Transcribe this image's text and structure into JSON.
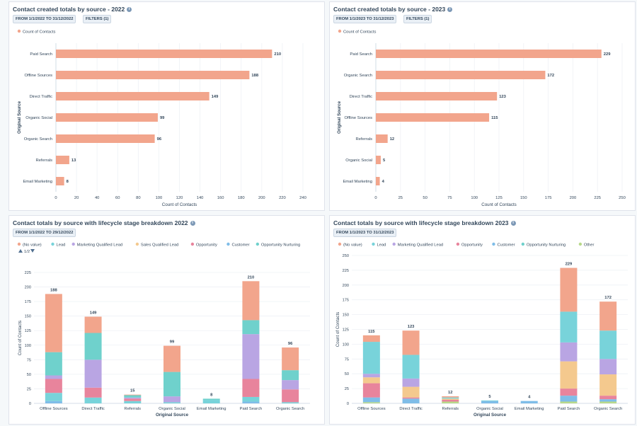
{
  "panels": {
    "p1": {
      "title": "Contact created totals by source - 2022",
      "date_filter": "FROM 1/1/2022 TO 31/12/2022",
      "filters": "FILTERS (1)"
    },
    "p2": {
      "title": "Contact created totals by source - 2023",
      "date_filter": "FROM 1/1/2023 TO 31/12/2023",
      "filters": "FILTERS (1)"
    },
    "p3": {
      "title": "Contact totals by source with lifecycle stage breakdown 2022",
      "date_filter": "FROM 1/1/2022 TO 29/12/2022",
      "pager": "1/2"
    },
    "p4": {
      "title": "Contact totals by source with lifecycle stage breakdown 2023",
      "date_filter": "FROM 1/1/2023 TO 31/12/2023"
    }
  },
  "icons": {
    "info": "info-icon",
    "pager_up": "triangle-up-icon",
    "pager_down": "triangle-down-icon"
  },
  "colors": {
    "(No value)": "#f2a58c",
    "Lead": "#78d3da",
    "Marketing Qualified Lead": "#b9a5e3",
    "Sales Qualified Lead": "#f4c98e",
    "Opportunity": "#e8849c",
    "Customer": "#7fbde8",
    "Opportunity Nurturing": "#6fd1cc",
    "Other": "#b8d98a",
    "bar": "#f2a58c"
  },
  "chart_data": [
    {
      "type": "bar",
      "orientation": "horizontal",
      "legend": [
        "Count of Contacts"
      ],
      "categories": [
        "Paid Search",
        "Offline Sources",
        "Direct Traffic",
        "Organic Social",
        "Organic Search",
        "Referrals",
        "Email Marketing"
      ],
      "values": [
        210,
        188,
        149,
        99,
        96,
        13,
        8
      ],
      "xlabel": "Count of Contacts",
      "ylabel": "Original Source",
      "xlim": [
        0,
        240
      ],
      "ticks": [
        0,
        20,
        40,
        60,
        80,
        100,
        120,
        140,
        160,
        180,
        200,
        220,
        240
      ],
      "grid": true
    },
    {
      "type": "bar",
      "orientation": "horizontal",
      "legend": [
        "Count of Contacts"
      ],
      "categories": [
        "Paid Search",
        "Organic Search",
        "Direct Traffic",
        "Offline Sources",
        "Referrals",
        "Organic Social",
        "Email Marketing"
      ],
      "values": [
        229,
        172,
        123,
        115,
        12,
        5,
        4
      ],
      "xlabel": "Count of Contacts",
      "ylabel": "Original Source",
      "xlim": [
        0,
        250
      ],
      "ticks": [
        0,
        25,
        50,
        75,
        100,
        125,
        150,
        175,
        200,
        225,
        250
      ],
      "grid": true
    },
    {
      "type": "bar",
      "stacked": true,
      "legend": [
        "(No value)",
        "Lead",
        "Marketing Qualified Lead",
        "Sales Qualified Lead",
        "Opportunity",
        "Customer",
        "Opportunity Nurturing"
      ],
      "categories": [
        "Offline Sources",
        "Direct Traffic",
        "Referrals",
        "Organic Social",
        "Email Marketing",
        "Paid Search",
        "Organic Search"
      ],
      "totals": [
        188,
        149,
        15,
        99,
        8,
        210,
        96
      ],
      "series": [
        {
          "name": "Customer",
          "values": [
            4,
            0,
            0,
            0,
            0,
            3,
            0
          ]
        },
        {
          "name": "Lead",
          "values": [
            14,
            10,
            4,
            2,
            6,
            8,
            2
          ]
        },
        {
          "name": "Opportunity",
          "values": [
            24,
            17,
            4,
            0,
            0,
            31,
            22
          ]
        },
        {
          "name": "Marketing Qualified Lead",
          "values": [
            6,
            48,
            2,
            10,
            0,
            77,
            16
          ]
        },
        {
          "name": "Opportunity Nurturing",
          "values": [
            40,
            46,
            4,
            42,
            2,
            24,
            17
          ]
        },
        {
          "name": "(No value)",
          "values": [
            100,
            28,
            1,
            45,
            0,
            67,
            39
          ]
        }
      ],
      "xlabel": "Original Source",
      "ylabel": "Count of Contacts",
      "ylim": [
        0,
        225
      ],
      "ticks": [
        0,
        25,
        50,
        75,
        100,
        125,
        150,
        175,
        200,
        225
      ],
      "grid": true
    },
    {
      "type": "bar",
      "stacked": true,
      "legend": [
        "(No value)",
        "Lead",
        "Marketing Qualified Lead",
        "Opportunity",
        "Customer",
        "Opportunity Nurturing",
        "Other"
      ],
      "categories": [
        "Offline Sources",
        "Direct Traffic",
        "Referrals",
        "Organic Social",
        "Email Marketing",
        "Paid Search",
        "Organic Search"
      ],
      "totals": [
        115,
        123,
        12,
        5,
        4,
        229,
        172
      ],
      "series": [
        {
          "name": "Other",
          "values": [
            2,
            0,
            3,
            0,
            0,
            3,
            3
          ]
        },
        {
          "name": "Customer",
          "values": [
            8,
            8,
            0,
            4,
            4,
            10,
            4
          ]
        },
        {
          "name": "Opportunity",
          "values": [
            24,
            2,
            3,
            0,
            0,
            12,
            6
          ]
        },
        {
          "name": "Sales Qualified Lead",
          "values": [
            10,
            18,
            2,
            0,
            0,
            46,
            36
          ]
        },
        {
          "name": "Marketing Qualified Lead",
          "values": [
            6,
            14,
            0,
            0,
            0,
            32,
            26
          ]
        },
        {
          "name": "Lead",
          "values": [
            54,
            40,
            2,
            1,
            0,
            52,
            48
          ]
        },
        {
          "name": "(No value)",
          "values": [
            11,
            41,
            2,
            0,
            0,
            74,
            49
          ]
        }
      ],
      "xlabel": "Original Source",
      "ylabel": "Count of Contacts",
      "ylim": [
        0,
        250
      ],
      "ticks": [
        0,
        25,
        50,
        75,
        100,
        125,
        150,
        175,
        200,
        225,
        250
      ],
      "grid": true
    }
  ]
}
